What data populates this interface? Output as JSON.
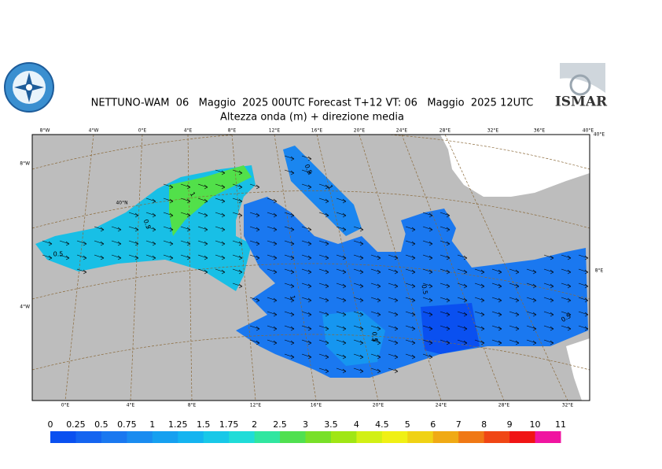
{
  "header": {
    "title": "NETTUNO-WAM  06   Maggio  2025 00UTC Forecast T+12 VT: 06   Maggio  2025 12UTC",
    "subtitle": "Altezza onda (m) + direzione media",
    "logo_text": "ISMAR"
  },
  "map": {
    "top_labels": [
      "8°W",
      "4°W",
      "0°E",
      "4°E",
      "8°E",
      "12°E",
      "16°E",
      "20°E",
      "24°E",
      "28°E",
      "32°E",
      "36°E",
      "40°E"
    ],
    "bottom_labels": [
      "0°E",
      "4°E",
      "8°E",
      "12°E",
      "16°E",
      "20°E",
      "24°E",
      "28°E",
      "32°E"
    ],
    "left_labels": [
      "8°W",
      "4°W"
    ],
    "inner_labels": [
      "40°N"
    ],
    "right_labels": [
      "40°E",
      "8°E"
    ],
    "contour_labels": [
      "0.5",
      "1",
      "1",
      "0.5",
      "0.5",
      "1",
      "0.5",
      "1",
      "0.5",
      "0.5"
    ]
  },
  "colorbar": {
    "labels": [
      "0",
      "0.25",
      "0.5",
      "0.75",
      "1",
      "1.25",
      "1.5",
      "1.75",
      "2",
      "2.5",
      "3",
      "3.5",
      "4",
      "4.5",
      "5",
      "6",
      "7",
      "8",
      "9",
      "10",
      "11"
    ],
    "colors": [
      "#0a50f0",
      "#1464f0",
      "#1a78f0",
      "#1a8cf0",
      "#16a0f0",
      "#14b4f0",
      "#18c8e8",
      "#20dcd8",
      "#30e6a0",
      "#50e050",
      "#78e028",
      "#a0e614",
      "#d2f014",
      "#f0f014",
      "#f0d214",
      "#f0aa14",
      "#f07814",
      "#f04614",
      "#f01414",
      "#f014a0"
    ]
  }
}
